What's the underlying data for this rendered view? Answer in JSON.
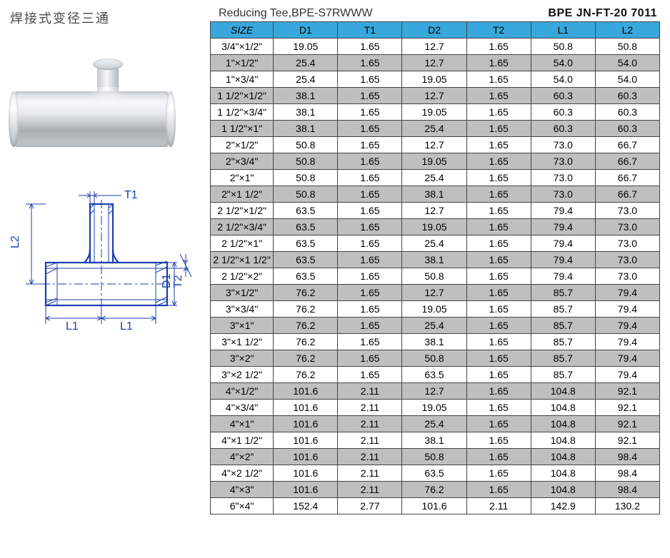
{
  "header": {
    "cjk_title": "焊接式变径三通",
    "product_title": "Reducing Tee,BPE-S7RWWW",
    "product_code": "BPE  JN-FT-20 7011"
  },
  "table": {
    "header_bg": "#38a8dc",
    "alt_row_bg": "#bfbfbf",
    "columns": [
      "SIZE",
      "D1",
      "T1",
      "D2",
      "T2",
      "L1",
      "L2"
    ],
    "rows": [
      [
        "3/4\"×1/2\"",
        "19.05",
        "1.65",
        "12.7",
        "1.65",
        "50.8",
        "50.8"
      ],
      [
        "1\"×1/2\"",
        "25.4",
        "1.65",
        "12.7",
        "1.65",
        "54.0",
        "54.0"
      ],
      [
        "1\"×3/4\"",
        "25.4",
        "1.65",
        "19.05",
        "1.65",
        "54.0",
        "54.0"
      ],
      [
        "1 1/2\"×1/2\"",
        "38.1",
        "1.65",
        "12.7",
        "1.65",
        "60.3",
        "60.3"
      ],
      [
        "1 1/2\"×3/4\"",
        "38.1",
        "1.65",
        "19.05",
        "1.65",
        "60.3",
        "60.3"
      ],
      [
        "1 1/2\"×1\"",
        "38.1",
        "1.65",
        "25.4",
        "1.65",
        "60.3",
        "60.3"
      ],
      [
        "2\"×1/2\"",
        "50.8",
        "1.65",
        "12.7",
        "1.65",
        "73.0",
        "66.7"
      ],
      [
        "2\"×3/4\"",
        "50.8",
        "1.65",
        "19.05",
        "1.65",
        "73.0",
        "66.7"
      ],
      [
        "2\"×1\"",
        "50.8",
        "1.65",
        "25.4",
        "1.65",
        "73.0",
        "66.7"
      ],
      [
        "2\"×1 1/2\"",
        "50.8",
        "1.65",
        "38.1",
        "1.65",
        "73.0",
        "66.7"
      ],
      [
        "2 1/2\"×1/2\"",
        "63.5",
        "1.65",
        "12.7",
        "1.65",
        "79.4",
        "73.0"
      ],
      [
        "2 1/2\"×3/4\"",
        "63.5",
        "1.65",
        "19.05",
        "1.65",
        "79.4",
        "73.0"
      ],
      [
        "2 1/2\"×1\"",
        "63.5",
        "1.65",
        "25.4",
        "1.65",
        "79.4",
        "73.0"
      ],
      [
        "2 1/2\"×1 1/2\"",
        "63.5",
        "1.65",
        "38.1",
        "1.65",
        "79.4",
        "73.0"
      ],
      [
        "2 1/2\"×2\"",
        "63.5",
        "1.65",
        "50.8",
        "1.65",
        "79.4",
        "73.0"
      ],
      [
        "3\"×1/2\"",
        "76.2",
        "1.65",
        "12.7",
        "1.65",
        "85.7",
        "79.4"
      ],
      [
        "3\"×3/4\"",
        "76.2",
        "1.65",
        "19.05",
        "1.65",
        "85.7",
        "79.4"
      ],
      [
        "3\"×1\"",
        "76.2",
        "1.65",
        "25.4",
        "1.65",
        "85.7",
        "79.4"
      ],
      [
        "3\"×1 1/2\"",
        "76.2",
        "1.65",
        "38.1",
        "1.65",
        "85.7",
        "79.4"
      ],
      [
        "3\"×2\"",
        "76.2",
        "1.65",
        "50.8",
        "1.65",
        "85.7",
        "79.4"
      ],
      [
        "3\"×2 1/2\"",
        "76.2",
        "1.65",
        "63.5",
        "1.65",
        "85.7",
        "79.4"
      ],
      [
        "4\"×1/2\"",
        "101.6",
        "2.11",
        "12.7",
        "1.65",
        "104.8",
        "92.1"
      ],
      [
        "4\"×3/4\"",
        "101.6",
        "2.11",
        "19.05",
        "1.65",
        "104.8",
        "92.1"
      ],
      [
        "4\"×1\"",
        "101.6",
        "2.11",
        "25.4",
        "1.65",
        "104.8",
        "92.1"
      ],
      [
        "4\"×1 1/2\"",
        "101.6",
        "2.11",
        "38.1",
        "1.65",
        "104.8",
        "92.1"
      ],
      [
        "4\"×2\"",
        "101.6",
        "2.11",
        "50.8",
        "1.65",
        "104.8",
        "98.4"
      ],
      [
        "4\"×2 1/2\"",
        "101.6",
        "2.11",
        "63.5",
        "1.65",
        "104.8",
        "98.4"
      ],
      [
        "4\"×3\"",
        "101.6",
        "2.11",
        "76.2",
        "1.65",
        "104.8",
        "98.4"
      ],
      [
        "6\"×4\"",
        "152.4",
        "2.77",
        "101.6",
        "2.11",
        "142.9",
        "130.2"
      ]
    ]
  },
  "drawing": {
    "labels": {
      "T1": "T1",
      "L2": "L2",
      "D1": "D1",
      "T2": "T2",
      "L1a": "L1",
      "L1b": "L1"
    },
    "stroke": "#1a3fb0"
  }
}
